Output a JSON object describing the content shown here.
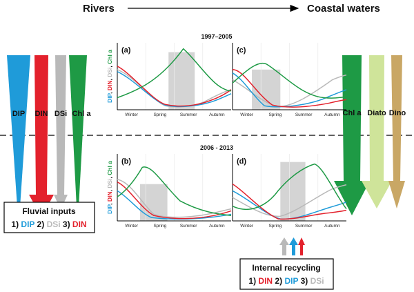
{
  "header": {
    "left": "Rivers",
    "right": "Coastal waters"
  },
  "periods": {
    "top": "1997–2005",
    "bottom": "2006 - 2013"
  },
  "panels": [
    {
      "letter": "(a)"
    },
    {
      "letter": "(c)"
    },
    {
      "letter": "(b)"
    },
    {
      "letter": "(d)"
    }
  ],
  "ylabel": {
    "dip": "DIP",
    "din": "DIN",
    "dsi": "DSi",
    "chl": "Chl a",
    "sep": ", "
  },
  "seasons": [
    "Winter",
    "Spring",
    "Summer",
    "Autumn"
  ],
  "river_labels": {
    "dip": "DIP",
    "din": "DIN",
    "dsi": "DSi",
    "chl": "Chl a"
  },
  "coastal_labels": {
    "chl": "Chl a",
    "diato": "Diato",
    "dino": "Dino"
  },
  "fluvial_box": {
    "title": "Fluvial inputs",
    "n1": "1) ",
    "v1": "DIP",
    "n2": " 2) ",
    "v2": "DSi",
    "n3": " 3) ",
    "v3": "DIN"
  },
  "recycling_box": {
    "title": "Internal recycling",
    "n1": "1) ",
    "v1": "DIN",
    "n2": " 2) ",
    "v2": "DIP",
    "n3": " 3) ",
    "v3": "DSi"
  },
  "colors": {
    "dip": "#1f9bd9",
    "din": "#e3212c",
    "dsi": "#b9b9b9",
    "chl": "#1e9a45",
    "diato": "#cfe49a",
    "dino": "#c9a765",
    "grey_box": "#d4d4d4"
  }
}
